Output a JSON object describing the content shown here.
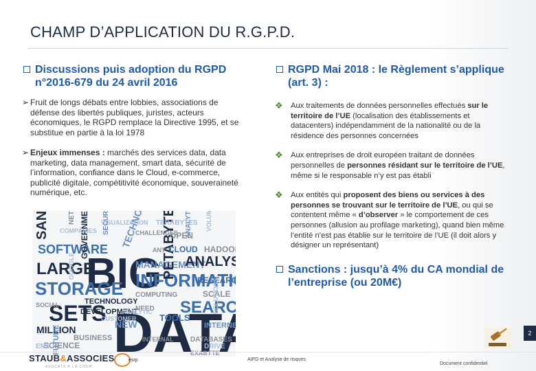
{
  "title": "CHAMP D’APPLICATION DU R.G.P.D.",
  "left": {
    "heading": "Discussions puis adoption du RGPD n°2016-679 du 24 avril 2016",
    "items": [
      {
        "marker": "Ø",
        "text": "Fruit de longs débats entre lobbies, associations de défense des libertés publiques, juristes, acteurs économiques, le RGPD remplace la Directive 1995, et se substitue en partie à la loi 1978"
      },
      {
        "marker": "Ø",
        "bold": "Enjeux immenses :",
        "text": " marchés des services data, data marketing, data management, smart data, sécurité de l’information, confiance dans le Cloud, e-commerce, publicité digitale, compétitivité économique, souveraineté numérique, etc."
      }
    ]
  },
  "right": {
    "heading": "RGPD Mai 2018 : le Règlement s’applique (art. 3) :",
    "items": [
      {
        "marker": "❖",
        "t1": "Aux traitements de données personnelles effectués ",
        "b1": "sur le territoire de l’UE",
        "t2": " (localisation des établissements et datacenters) indépendamment de la nationalité ou de la résidence des personnes concernées"
      },
      {
        "marker": "❖",
        "t1": "Aux entreprises de droit européen traitant de données personnelles de ",
        "b1": "personnes résidant sur le territoire de l’UE",
        "t2": ", même si le responsable n’y est pas établi"
      },
      {
        "marker": "❖",
        "t1": "Aux entités qui ",
        "b1": "proposent des biens ou services à des personnes se trouvant sur le territoire de l’UE",
        "t2": ", ou qui se contentent même « ",
        "b2": "d’observer",
        "t3": " » le comportement de ces personnes (allusion au profilage marketing), quand bien même l’entité n’est pas établie sur le territoire de l’UE (il doit alors y désigner un représentant)"
      }
    ],
    "sanctions": "Sanctions : jusqu’à 4% du CA mondial de l’entreprise (ou 20M€)"
  },
  "word_cloud": {
    "words": [
      "BIG",
      "DATA",
      "INFORMATION",
      "MANAGEMENT",
      "LARGE",
      "STORAGE",
      "SETS",
      "SOFTWARE",
      "ANALYSIS",
      "SEARCH",
      "PETABYTES",
      "TECHNOLOGIES",
      "TECHNOLOGY",
      "GOVERNMENT",
      "RESEARCH",
      "DEVELOPMENT",
      "MILLION",
      "SCIENCE",
      "FUTURE",
      "NEW",
      "BUSINESS",
      "SANNAS",
      "ANALYTICS",
      "TOOLS",
      "SCALE",
      "CHALLENGES",
      "VISUALIZATION",
      "HADOOP",
      "COMPUTING",
      "INTERNET",
      "NETWORK",
      "DATABASES",
      "COMPANIES",
      "NEED",
      "VOLUMES",
      "CLOUD",
      "ANY",
      "SECURITY",
      "OPEN",
      "DRIVE",
      "INTERNAL",
      "SOCIAL",
      "TERABYTES",
      "GOOGLE",
      "EXABYTE",
      "CUSTOMER",
      "EMC",
      "SOLUTIONS",
      "ANALYTIC"
    ],
    "colors": {
      "dark": "#1f2a44",
      "blue": "#3b6da8",
      "mid": "#6d8fbf",
      "grey": "#8a8f98",
      "light": "#a9bdd6"
    }
  },
  "footer": {
    "slide_number": "2",
    "logo_left": "STAUB",
    "logo_amp": "&",
    "logo_right": "ASSOCIES",
    "logo_tagline": "AVOCATS À LA COUR",
    "logo2": "esrp",
    "middle": "AIPD et Analyse de risques",
    "right": "Document confidentiel"
  },
  "icons": [
    "checkbox-bullet-icon",
    "arrow-bullet-icon",
    "diamond-bullet-icon",
    "gavel-icon"
  ],
  "theme": {
    "heading_blue": "#1f5aa8",
    "title_navy": "#1f2a44",
    "bullet_green": "#4a8a2a",
    "accent_orange": "#e8862c"
  }
}
